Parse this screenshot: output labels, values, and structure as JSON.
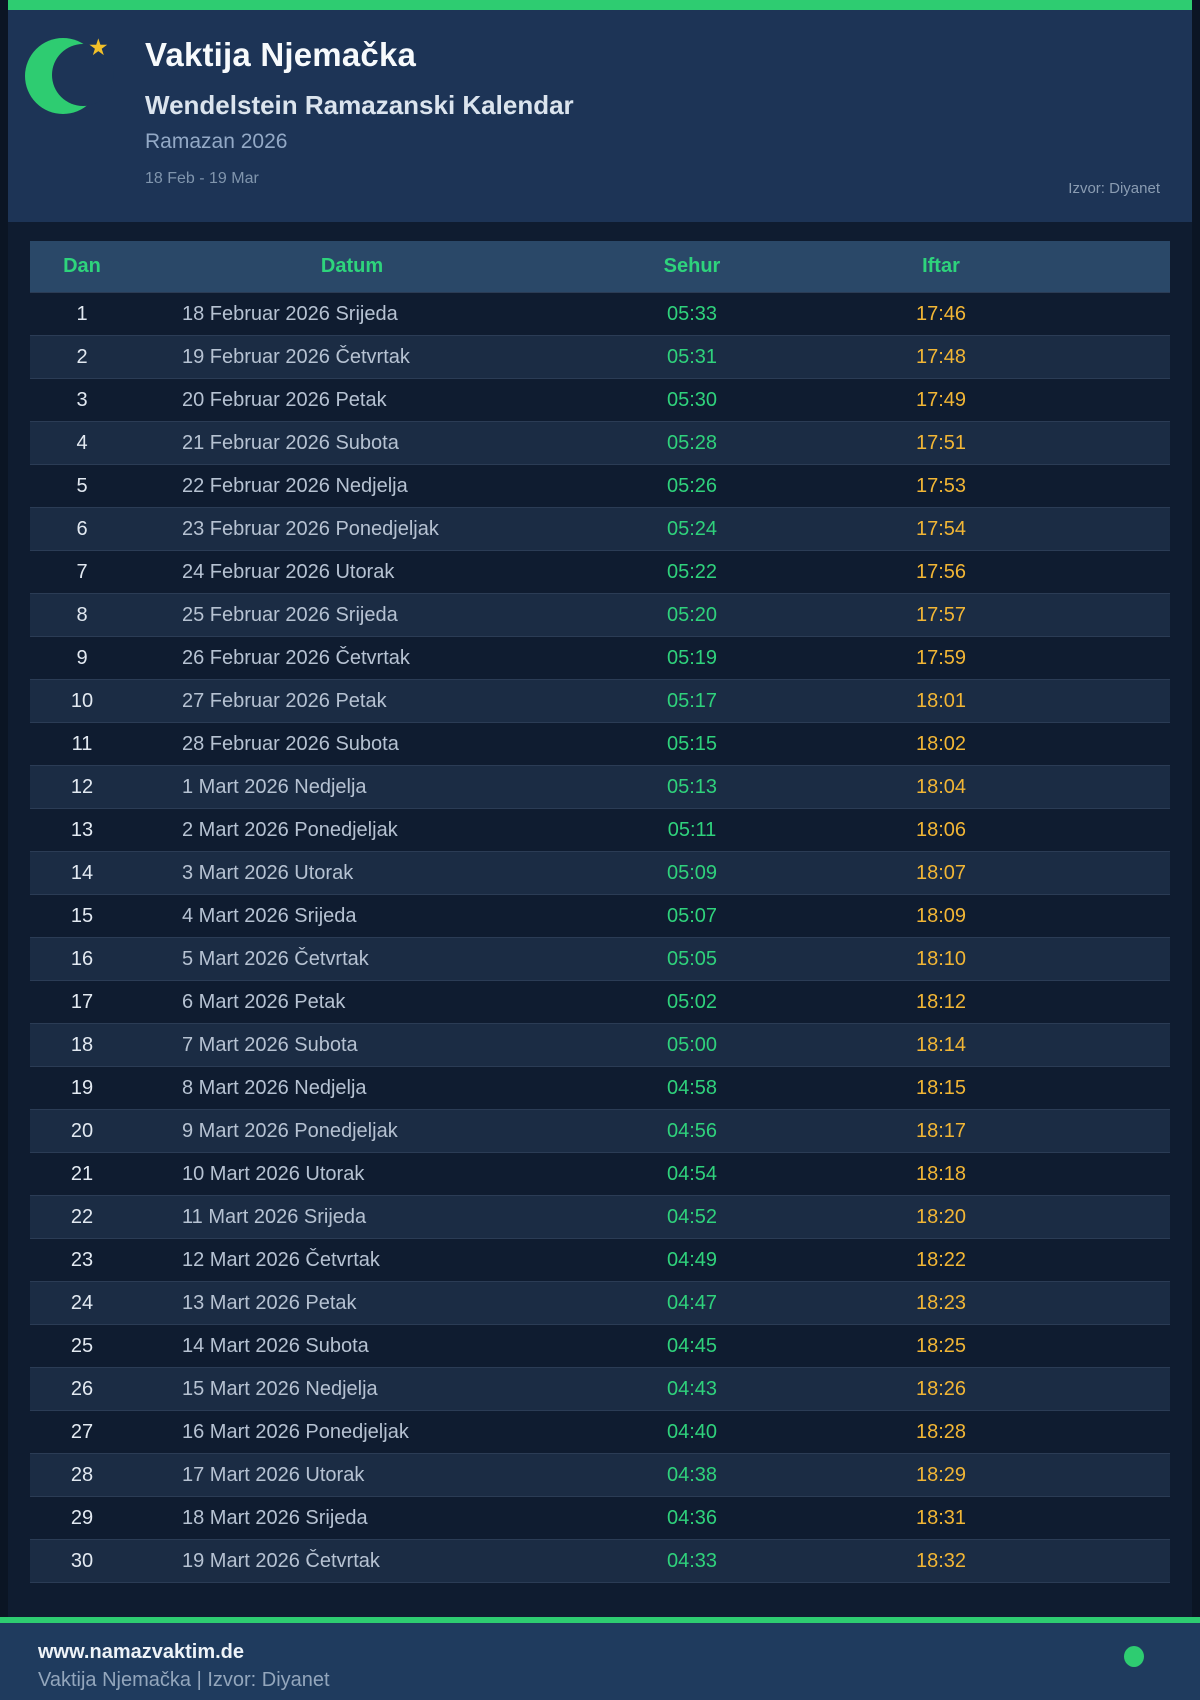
{
  "header": {
    "title": "Vaktija Njemačka",
    "subtitle": "Wendelstein Ramazanski Kalendar",
    "season": "Ramazan 2026",
    "date_range": "18 Feb - 19 Mar",
    "source": "Izvor: Diyanet",
    "logo_icon": "green-crescent-moon-with-gold-star"
  },
  "colors": {
    "accent_green": "#2ecc71",
    "sehur_green": "#2fd27c",
    "iftar_amber": "#f2b635",
    "header_navy": "#1d3456",
    "body_dark": "#0f1c30",
    "table_header_blue": "#2a4868",
    "footer_navy": "#1f3b5e"
  },
  "table": {
    "columns": [
      "Dan",
      "Datum",
      "Sehur",
      "Iftar"
    ],
    "rows": [
      [
        1,
        "18 Februar 2026 Srijeda",
        "05:33",
        "17:46"
      ],
      [
        2,
        "19 Februar 2026 Četvrtak",
        "05:31",
        "17:48"
      ],
      [
        3,
        "20 Februar 2026 Petak",
        "05:30",
        "17:49"
      ],
      [
        4,
        "21 Februar 2026 Subota",
        "05:28",
        "17:51"
      ],
      [
        5,
        "22 Februar 2026 Nedjelja",
        "05:26",
        "17:53"
      ],
      [
        6,
        "23 Februar 2026 Ponedjeljak",
        "05:24",
        "17:54"
      ],
      [
        7,
        "24 Februar 2026 Utorak",
        "05:22",
        "17:56"
      ],
      [
        8,
        "25 Februar 2026 Srijeda",
        "05:20",
        "17:57"
      ],
      [
        9,
        "26 Februar 2026 Četvrtak",
        "05:19",
        "17:59"
      ],
      [
        10,
        "27 Februar 2026 Petak",
        "05:17",
        "18:01"
      ],
      [
        11,
        "28 Februar 2026 Subota",
        "05:15",
        "18:02"
      ],
      [
        12,
        "1 Mart 2026 Nedjelja",
        "05:13",
        "18:04"
      ],
      [
        13,
        "2 Mart 2026 Ponedjeljak",
        "05:11",
        "18:06"
      ],
      [
        14,
        "3 Mart 2026 Utorak",
        "05:09",
        "18:07"
      ],
      [
        15,
        "4 Mart 2026 Srijeda",
        "05:07",
        "18:09"
      ],
      [
        16,
        "5 Mart 2026 Četvrtak",
        "05:05",
        "18:10"
      ],
      [
        17,
        "6 Mart 2026 Petak",
        "05:02",
        "18:12"
      ],
      [
        18,
        "7 Mart 2026 Subota",
        "05:00",
        "18:14"
      ],
      [
        19,
        "8 Mart 2026 Nedjelja",
        "04:58",
        "18:15"
      ],
      [
        20,
        "9 Mart 2026 Ponedjeljak",
        "04:56",
        "18:17"
      ],
      [
        21,
        "10 Mart 2026 Utorak",
        "04:54",
        "18:18"
      ],
      [
        22,
        "11 Mart 2026 Srijeda",
        "04:52",
        "18:20"
      ],
      [
        23,
        "12 Mart 2026 Četvrtak",
        "04:49",
        "18:22"
      ],
      [
        24,
        "13 Mart 2026 Petak",
        "04:47",
        "18:23"
      ],
      [
        25,
        "14 Mart 2026 Subota",
        "04:45",
        "18:25"
      ],
      [
        26,
        "15 Mart 2026 Nedjelja",
        "04:43",
        "18:26"
      ],
      [
        27,
        "16 Mart 2026 Ponedjeljak",
        "04:40",
        "18:28"
      ],
      [
        28,
        "17 Mart 2026 Utorak",
        "04:38",
        "18:29"
      ],
      [
        29,
        "18 Mart 2026 Srijeda",
        "04:36",
        "18:31"
      ],
      [
        30,
        "19 Mart 2026 Četvrtak",
        "04:33",
        "18:32"
      ]
    ]
  },
  "footer": {
    "website": "www.namazvaktim.de",
    "credit": "Vaktija Njemačka | Izvor: Diyanet"
  }
}
